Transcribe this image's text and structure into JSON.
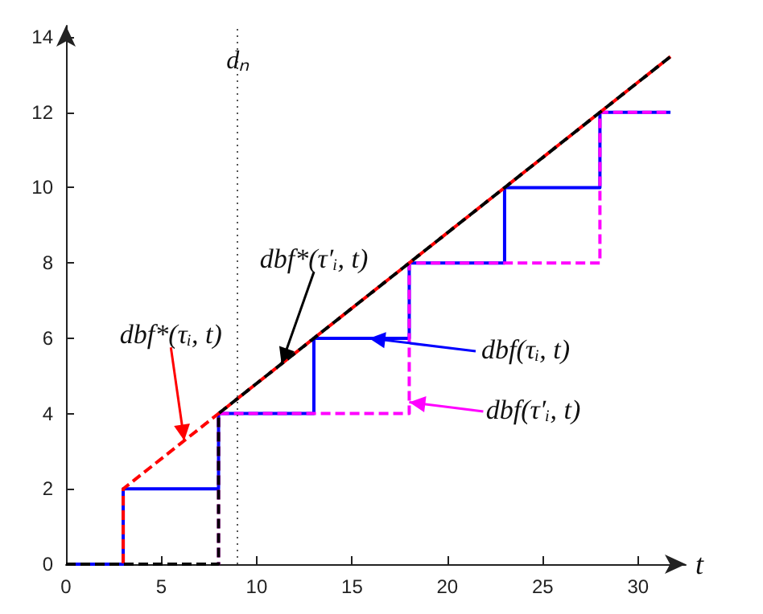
{
  "chart_data": {
    "type": "line",
    "xlabel": "t",
    "xlim": [
      0,
      32.5
    ],
    "ylim": [
      0,
      14.3
    ],
    "xticks": [
      0,
      5,
      10,
      15,
      20,
      25,
      30
    ],
    "yticks": [
      0,
      2,
      4,
      6,
      8,
      10,
      12,
      14
    ],
    "grid": false,
    "marker": "none",
    "series": [
      {
        "color": "#0000ff",
        "line_style": "solid",
        "x": [
          0,
          3,
          3,
          8,
          8,
          13,
          13,
          18,
          18,
          23,
          23,
          28,
          28,
          31.7
        ],
        "values": [
          0,
          0,
          2,
          2,
          4,
          4,
          6,
          6,
          8,
          8,
          10,
          10,
          12,
          12
        ]
      },
      {
        "color": "#ff00ff",
        "line_style": "dashed",
        "x": [
          0,
          8,
          8,
          18,
          18,
          28,
          28,
          31.7
        ],
        "values": [
          0,
          0,
          4,
          4,
          8,
          8,
          12,
          12
        ]
      },
      {
        "color": "#ff0000",
        "line_style": "dashed",
        "x": [
          0,
          3,
          3,
          31.7
        ],
        "values": [
          0,
          0,
          2,
          13.48
        ]
      },
      {
        "color": "#000000",
        "line_style": "dashed",
        "x": [
          0,
          8,
          8,
          31.7
        ],
        "values": [
          0,
          0,
          4,
          13.48
        ]
      }
    ],
    "ref_lines": [
      {
        "axis": "x",
        "value": 9,
        "label": "dₙ",
        "color": "#555555",
        "line_style": "dotted"
      }
    ],
    "annotations": [
      {
        "text": "dbf(τᵢ, t)",
        "x": 15.9,
        "y": 6
      },
      {
        "text": "dbf(τ′ᵢ, t)",
        "x": 18,
        "y": 4.3
      },
      {
        "text": "dbf*(τᵢ, t)",
        "x": 6.2,
        "y": 3.28
      },
      {
        "text": "dbf*(τ′ᵢ, t)",
        "x": 11.3,
        "y": 5.32
      }
    ]
  }
}
